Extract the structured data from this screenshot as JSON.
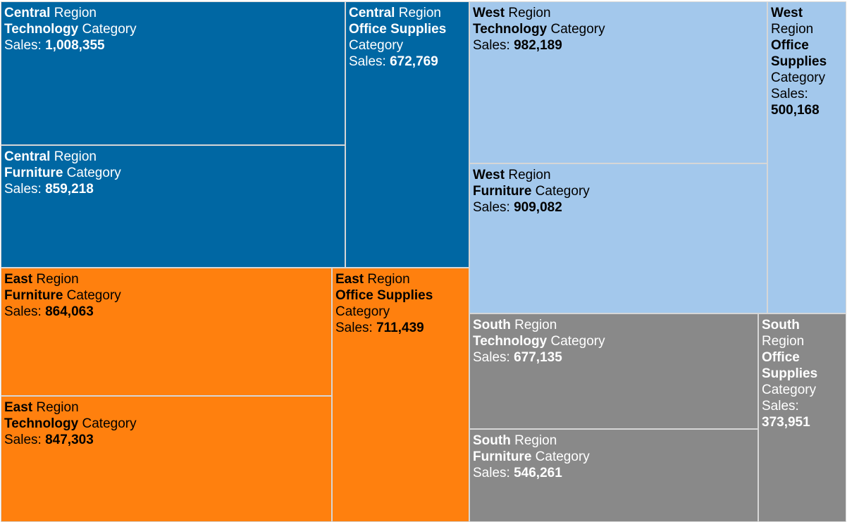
{
  "chart_data": {
    "type": "treemap",
    "label_words": {
      "region": "Region",
      "category": "Category",
      "sales": "Sales:"
    },
    "regions": [
      {
        "name": "Central",
        "color": "#0067a3",
        "text_color": "#ffffff",
        "items": [
          {
            "category": "Technology",
            "sales": 1008355,
            "sales_text": "1,008,355"
          },
          {
            "category": "Furniture",
            "sales": 859218,
            "sales_text": "859,218"
          },
          {
            "category": "Office Supplies",
            "sales": 672769,
            "sales_text": "672,769"
          }
        ]
      },
      {
        "name": "East",
        "color": "#ff800e",
        "text_color": "#000000",
        "items": [
          {
            "category": "Furniture",
            "sales": 864063,
            "sales_text": "864,063"
          },
          {
            "category": "Technology",
            "sales": 847303,
            "sales_text": "847,303"
          },
          {
            "category": "Office Supplies",
            "sales": 711439,
            "sales_text": "711,439"
          }
        ]
      },
      {
        "name": "West",
        "color": "#a3c8ec",
        "text_color": "#000000",
        "items": [
          {
            "category": "Technology",
            "sales": 982189,
            "sales_text": "982,189"
          },
          {
            "category": "Furniture",
            "sales": 909082,
            "sales_text": "909,082"
          },
          {
            "category": "Office Supplies",
            "sales": 500168,
            "sales_text": "500,168"
          }
        ]
      },
      {
        "name": "South",
        "color": "#898989",
        "text_color": "#ffffff",
        "items": [
          {
            "category": "Technology",
            "sales": 677135,
            "sales_text": "677,135"
          },
          {
            "category": "Furniture",
            "sales": 546261,
            "sales_text": "546,261"
          },
          {
            "category": "Office Supplies",
            "sales": 373951,
            "sales_text": "373,951"
          }
        ]
      }
    ]
  }
}
